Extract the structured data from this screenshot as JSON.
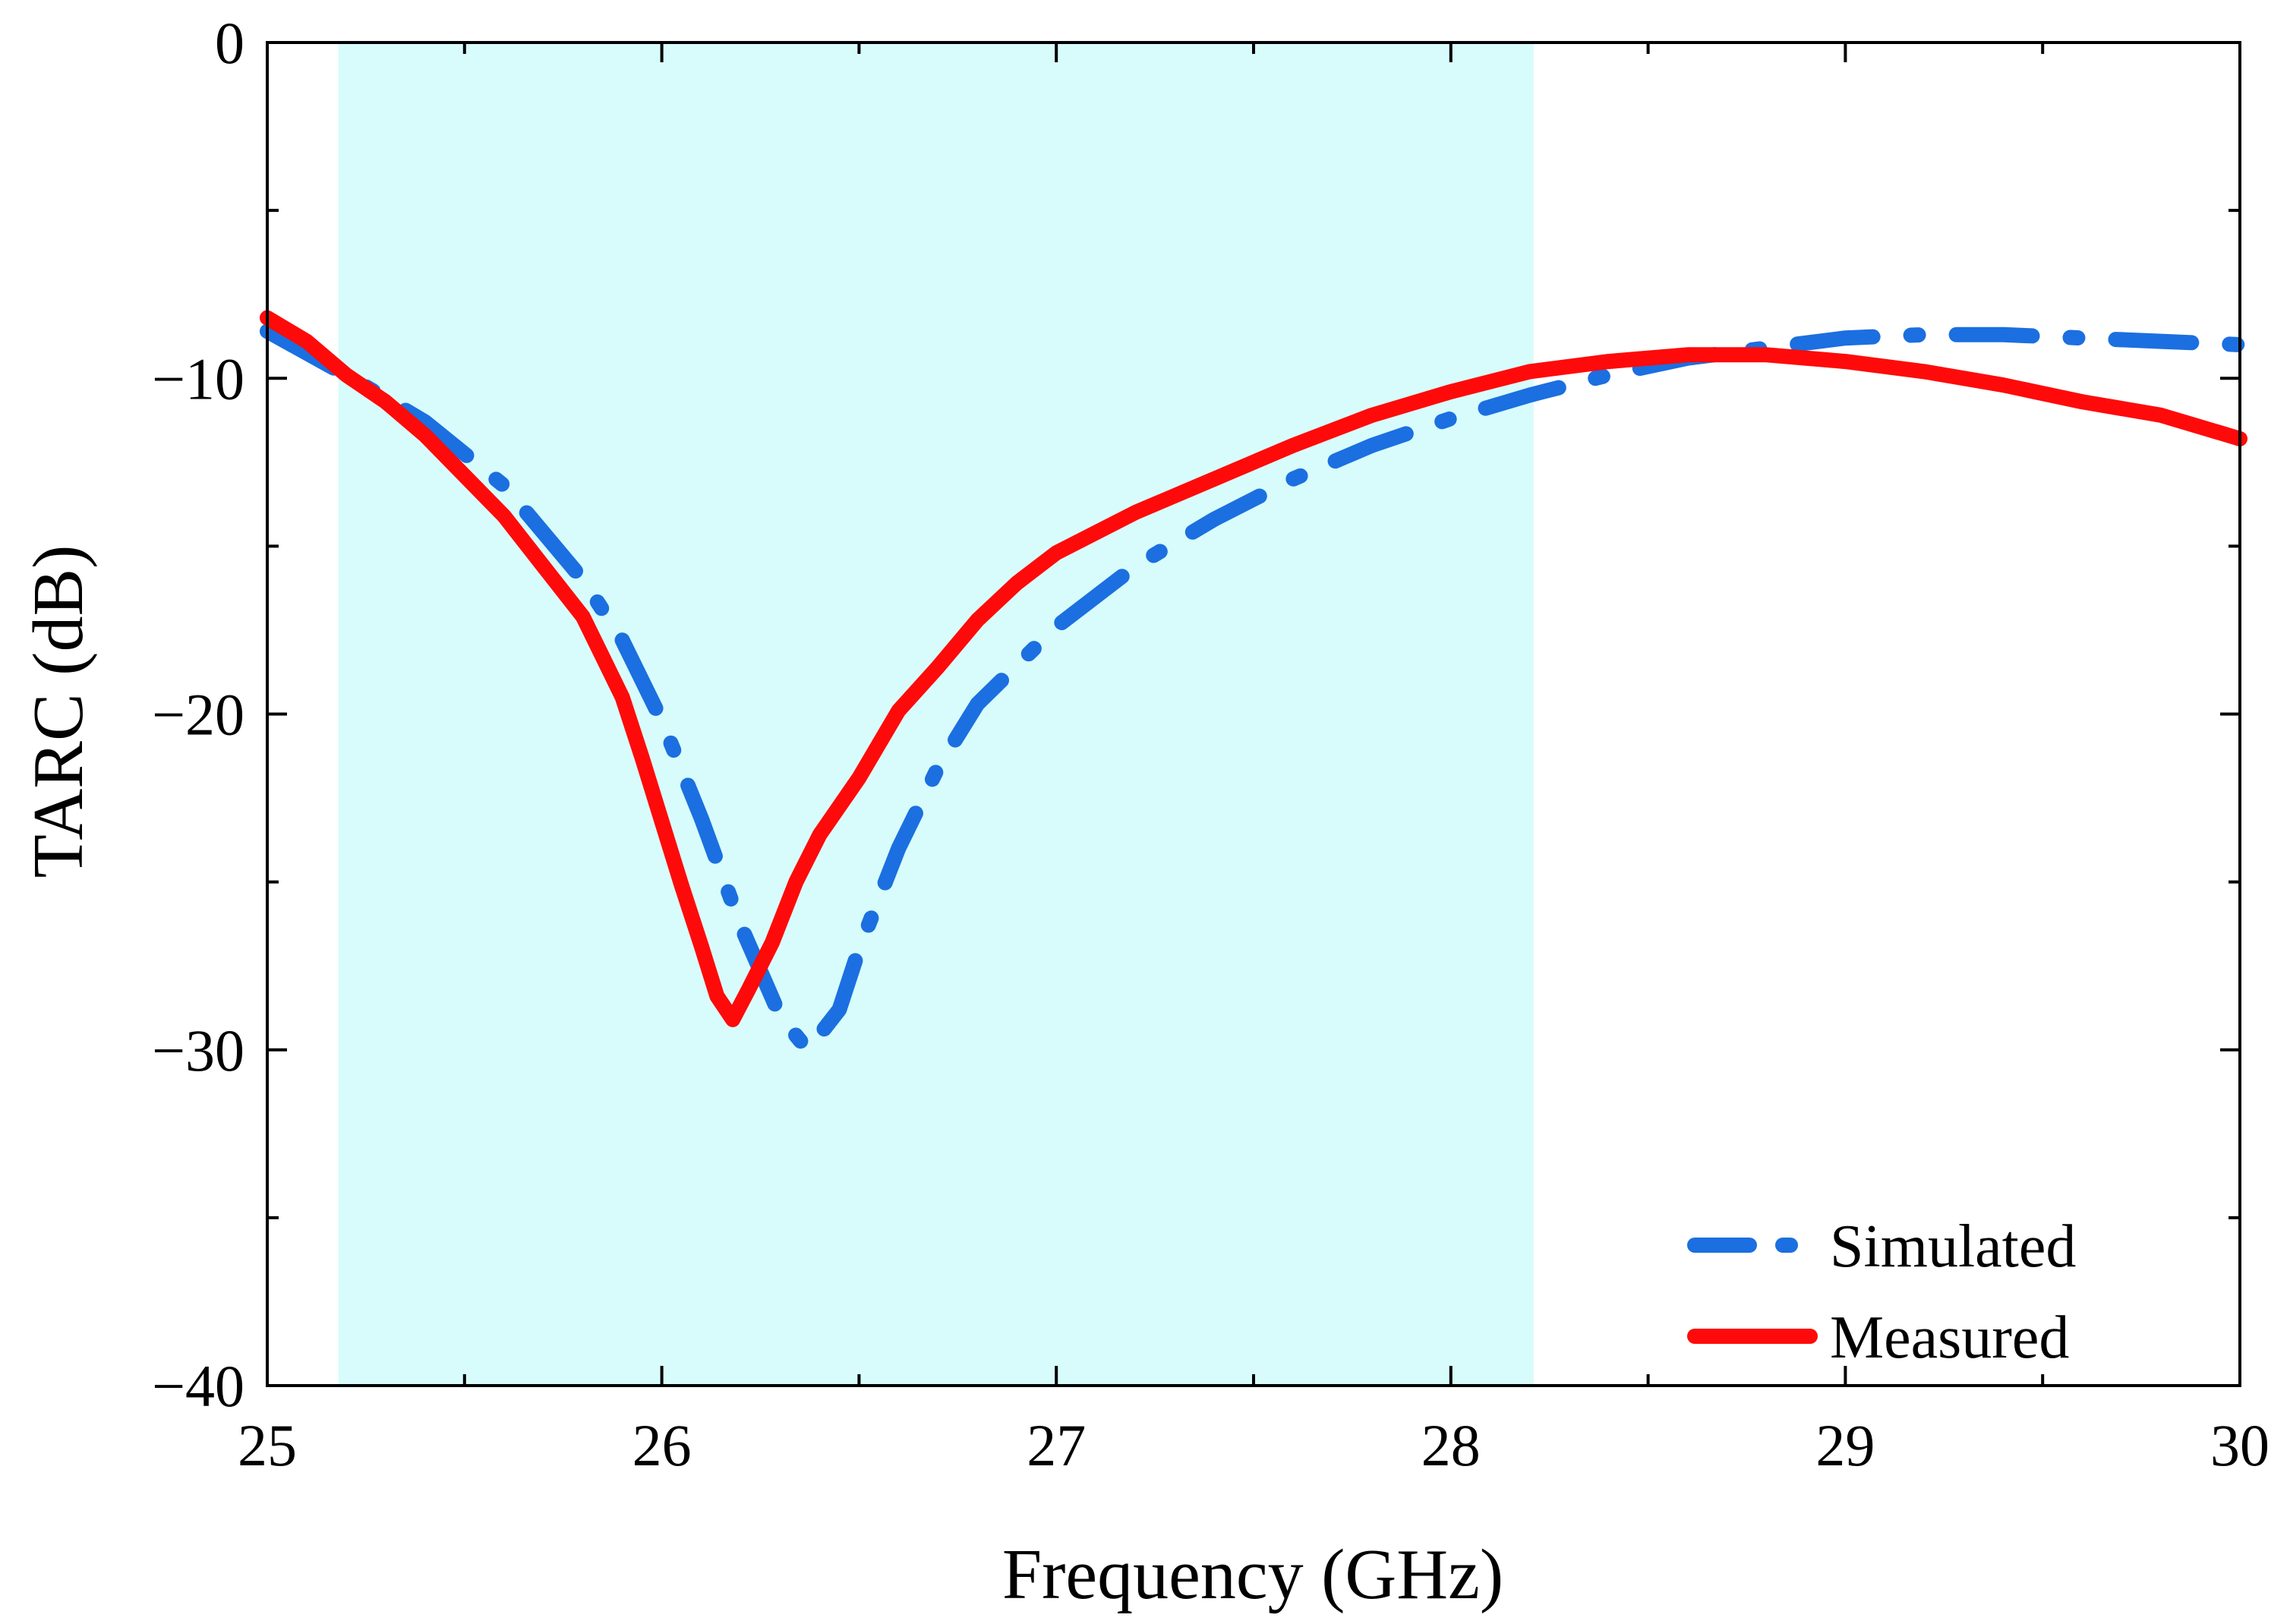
{
  "chart_data": {
    "type": "line",
    "title": "",
    "xlabel": "Frequency (GHz)",
    "ylabel": "TARC (dB)",
    "xlim": [
      25,
      30
    ],
    "ylim": [
      -40,
      0
    ],
    "xticks": [
      25,
      26,
      27,
      28,
      29,
      30
    ],
    "yticks": [
      0,
      -10,
      -20,
      -30,
      -40
    ],
    "xtick_labels": [
      "25",
      "26",
      "27",
      "28",
      "29",
      "30"
    ],
    "ytick_labels": [
      "0",
      "−10",
      "−20",
      "−30",
      "−40"
    ],
    "shaded_band": {
      "x_start": 25.18,
      "x_end": 28.21,
      "color": "#d8fcfc"
    },
    "legend_position": "bottom-right",
    "series": [
      {
        "name": "Simulated",
        "style": "dash-dot",
        "color": "#1b6fe0",
        "points": [
          [
            25.0,
            -8.6
          ],
          [
            25.2,
            -9.9
          ],
          [
            25.4,
            -11.3
          ],
          [
            25.6,
            -13.2
          ],
          [
            25.8,
            -16.0
          ],
          [
            25.9,
            -17.8
          ],
          [
            26.0,
            -20.2
          ],
          [
            26.1,
            -23.1
          ],
          [
            26.2,
            -26.3
          ],
          [
            26.3,
            -29.0
          ],
          [
            26.37,
            -30.0
          ],
          [
            26.45,
            -28.8
          ],
          [
            26.5,
            -27.0
          ],
          [
            26.6,
            -24.0
          ],
          [
            26.7,
            -21.6
          ],
          [
            26.8,
            -19.7
          ],
          [
            27.0,
            -17.4
          ],
          [
            27.2,
            -15.6
          ],
          [
            27.4,
            -14.2
          ],
          [
            27.6,
            -13.0
          ],
          [
            27.8,
            -12.0
          ],
          [
            28.0,
            -11.2
          ],
          [
            28.2,
            -10.5
          ],
          [
            28.4,
            -9.9
          ],
          [
            28.6,
            -9.4
          ],
          [
            28.8,
            -9.1
          ],
          [
            29.0,
            -8.8
          ],
          [
            29.2,
            -8.7
          ],
          [
            29.4,
            -8.7
          ],
          [
            29.6,
            -8.8
          ],
          [
            29.8,
            -8.9
          ],
          [
            30.0,
            -9.0
          ]
        ]
      },
      {
        "name": "Measured",
        "style": "solid",
        "color": "#ff0a0a",
        "points": [
          [
            25.0,
            -8.2
          ],
          [
            25.1,
            -8.9
          ],
          [
            25.2,
            -9.9
          ],
          [
            25.3,
            -10.7
          ],
          [
            25.4,
            -11.7
          ],
          [
            25.5,
            -12.9
          ],
          [
            25.6,
            -14.1
          ],
          [
            25.7,
            -15.6
          ],
          [
            25.8,
            -17.1
          ],
          [
            25.85,
            -18.3
          ],
          [
            25.9,
            -19.5
          ],
          [
            25.95,
            -21.3
          ],
          [
            26.0,
            -23.2
          ],
          [
            26.05,
            -25.1
          ],
          [
            26.1,
            -26.9
          ],
          [
            26.14,
            -28.4
          ],
          [
            26.18,
            -29.1
          ],
          [
            26.22,
            -28.2
          ],
          [
            26.28,
            -26.8
          ],
          [
            26.34,
            -25.0
          ],
          [
            26.4,
            -23.6
          ],
          [
            26.5,
            -21.9
          ],
          [
            26.6,
            -19.9
          ],
          [
            26.7,
            -18.6
          ],
          [
            26.8,
            -17.2
          ],
          [
            26.9,
            -16.1
          ],
          [
            27.0,
            -15.2
          ],
          [
            27.2,
            -14.0
          ],
          [
            27.4,
            -13.0
          ],
          [
            27.6,
            -12.0
          ],
          [
            27.8,
            -11.1
          ],
          [
            28.0,
            -10.4
          ],
          [
            28.2,
            -9.8
          ],
          [
            28.4,
            -9.5
          ],
          [
            28.6,
            -9.3
          ],
          [
            28.8,
            -9.3
          ],
          [
            29.0,
            -9.5
          ],
          [
            29.2,
            -9.8
          ],
          [
            29.4,
            -10.2
          ],
          [
            29.6,
            -10.7
          ],
          [
            29.8,
            -11.1
          ],
          [
            30.0,
            -11.8
          ]
        ]
      }
    ]
  }
}
